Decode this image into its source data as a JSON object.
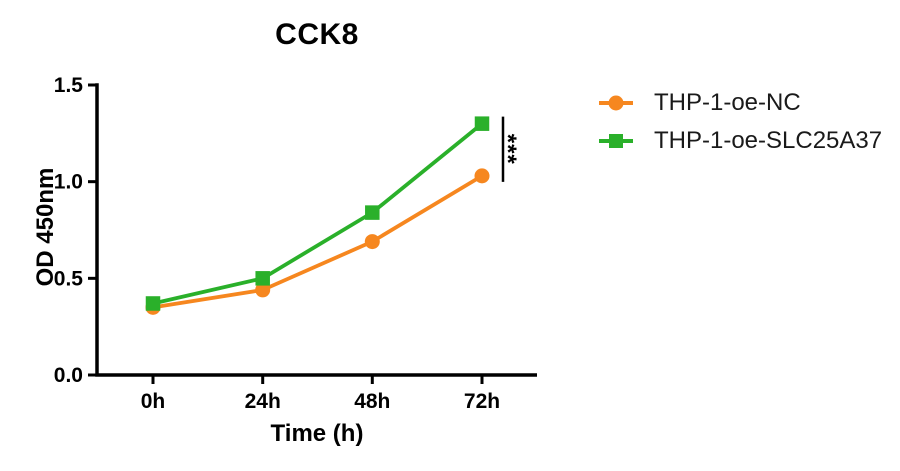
{
  "chart_data": {
    "type": "line",
    "title": "CCK8",
    "xlabel": "Time (h)",
    "ylabel": "OD 450nm",
    "categories": [
      "0h",
      "24h",
      "48h",
      "72h"
    ],
    "series": [
      {
        "name": "THP-1-oe-NC",
        "color": "#F6871F",
        "marker": "circle",
        "values": [
          0.35,
          0.44,
          0.69,
          1.03
        ]
      },
      {
        "name": "THP-1-oe-SLC25A37",
        "color": "#2AB02A",
        "marker": "square",
        "values": [
          0.37,
          0.5,
          0.84,
          1.3
        ]
      }
    ],
    "ylim": [
      0,
      1.5
    ],
    "yticks": [
      "0.0",
      "0.5",
      "1.0",
      "1.5"
    ],
    "grid": false,
    "legend_position": "right",
    "annotation": {
      "label": "***",
      "at_category": "72h",
      "compares": [
        "THP-1-oe-NC",
        "THP-1-oe-SLC25A37"
      ]
    }
  },
  "colors": {
    "axis": "#000000",
    "legend_text": "#1a1a1a",
    "background": "#ffffff"
  }
}
